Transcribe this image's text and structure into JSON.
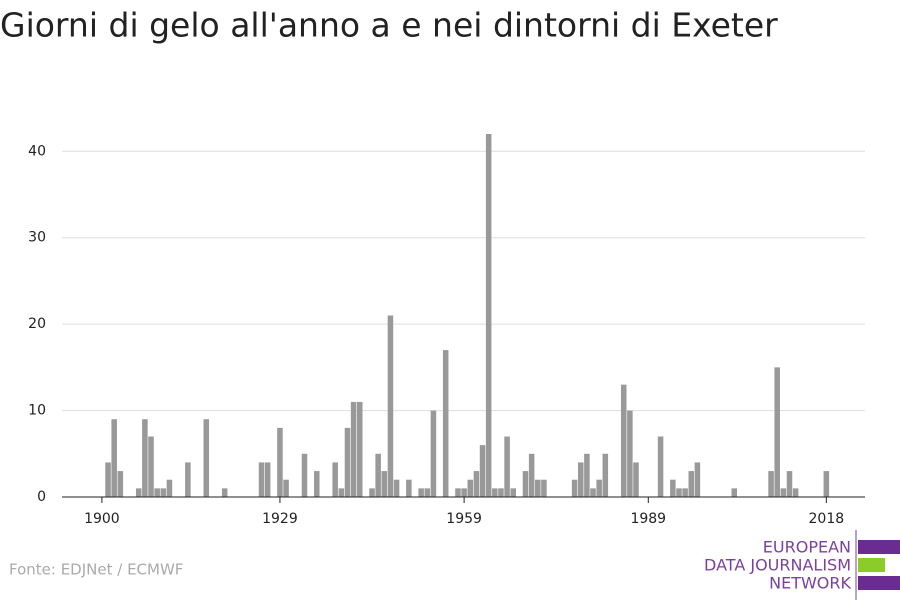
{
  "chart_data": {
    "type": "bar",
    "title": "Giorni di gelo all'anno a e nei dintorni di Exeter",
    "x": [
      1901,
      1902,
      1903,
      1906,
      1907,
      1908,
      1909,
      1910,
      1911,
      1914,
      1917,
      1920,
      1926,
      1927,
      1929,
      1930,
      1933,
      1935,
      1938,
      1939,
      1940,
      1941,
      1942,
      1944,
      1945,
      1946,
      1947,
      1948,
      1950,
      1952,
      1953,
      1954,
      1956,
      1958,
      1959,
      1960,
      1961,
      1962,
      1963,
      1964,
      1965,
      1966,
      1967,
      1969,
      1970,
      1971,
      1972,
      1977,
      1978,
      1979,
      1980,
      1981,
      1982,
      1985,
      1986,
      1987,
      1991,
      1993,
      1994,
      1995,
      1996,
      1997,
      2003,
      2009,
      2010,
      2011,
      2012,
      2013,
      2018
    ],
    "values": [
      4,
      9,
      3,
      1,
      9,
      7,
      1,
      1,
      2,
      4,
      9,
      1,
      4,
      4,
      8,
      2,
      5,
      3,
      4,
      1,
      8,
      11,
      11,
      1,
      5,
      3,
      21,
      2,
      2,
      1,
      1,
      10,
      17,
      1,
      1,
      2,
      3,
      6,
      42,
      1,
      1,
      7,
      1,
      3,
      5,
      2,
      2,
      2,
      4,
      5,
      1,
      2,
      5,
      13,
      10,
      4,
      7,
      2,
      1,
      1,
      3,
      4,
      1,
      3,
      15,
      1,
      3,
      1,
      3
    ],
    "color": "#999999",
    "xlim": [
      1893.5,
      2024.3
    ],
    "xticks": [
      1900,
      1929,
      1959,
      1989,
      2018
    ],
    "ylim": [
      0,
      42
    ],
    "yticks": [
      0,
      10,
      20,
      30,
      40
    ],
    "grid": true,
    "source": "Fonte: EDJNet / ECMWF",
    "logo": [
      "EUROPEAN",
      "DATA JOURNALISM",
      "NETWORK"
    ]
  }
}
